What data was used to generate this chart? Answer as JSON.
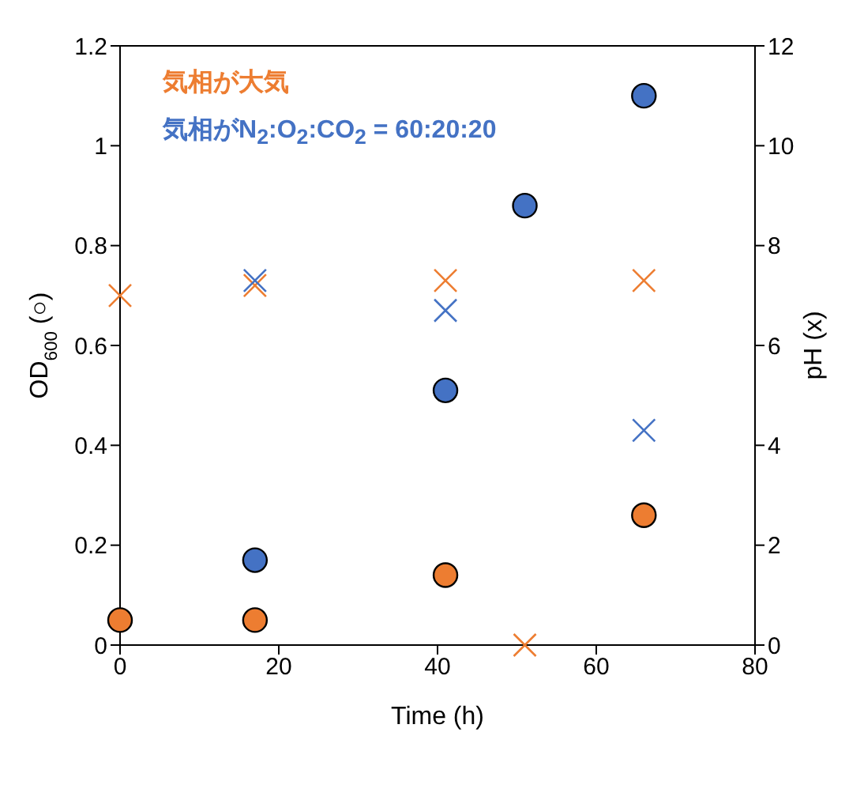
{
  "chart_data": {
    "type": "scatter",
    "xlabel": "Time (h)",
    "ylabel": "OD$_{600}$ (○)",
    "y2label": "pH (x)",
    "xlim": [
      0,
      80
    ],
    "xticks": [
      0,
      20,
      40,
      60,
      80
    ],
    "ylim": [
      0,
      1.2
    ],
    "yticks": [
      0,
      0.2,
      0.4,
      0.6,
      0.8,
      1,
      1.2
    ],
    "y2lim": [
      0,
      12
    ],
    "y2ticks": [
      0,
      2,
      4,
      6,
      8,
      10,
      12
    ],
    "grid": false,
    "legend": "top left",
    "series": [
      {
        "name": "気相が大気",
        "color": "#ed7d31",
        "marker": "circle",
        "x": [
          0,
          17,
          41,
          66
        ],
        "values": [
          0.05,
          0.05,
          0.14,
          0.26
        ]
      },
      {
        "name": "気相がN$_{2}$:O$_{2}$:CO$_{2}$ = 60:20:20",
        "color": "#4472c4",
        "marker": "circle",
        "x": [
          17,
          41,
          51,
          66
        ],
        "values": [
          0.17,
          0.51,
          0.88,
          1.1
        ]
      },
      {
        "color": "#ed7d31",
        "marker": "cross",
        "axis": "y2",
        "x": [
          0,
          17,
          41,
          51,
          66
        ],
        "values": [
          7.0,
          7.2,
          7.3,
          0,
          7.3
        ]
      },
      {
        "color": "#4472c4",
        "marker": "cross",
        "axis": "y2",
        "x": [
          17,
          41,
          66
        ],
        "values": [
          7.3,
          6.7,
          4.3
        ]
      }
    ]
  }
}
